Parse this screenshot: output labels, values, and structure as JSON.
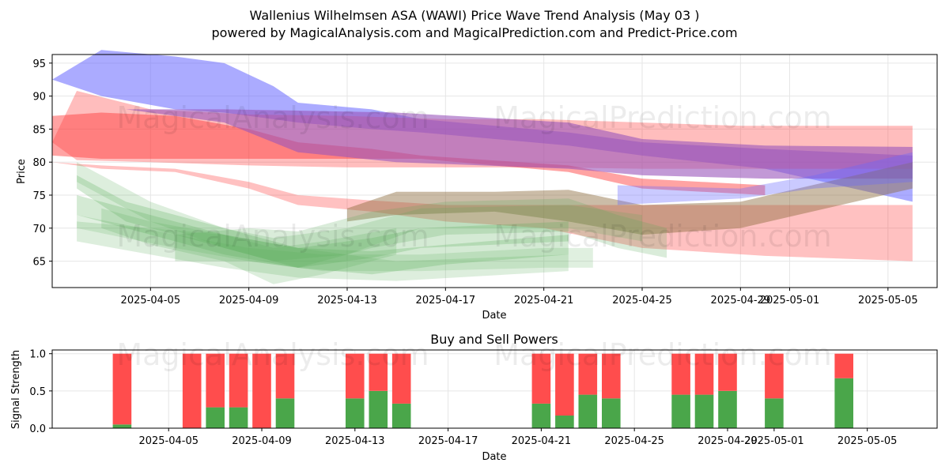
{
  "title_line1": "Wallenius Wilhelmsen ASA (WAWI) Price Wave Trend Analysis (May 03 )",
  "title_line2": "powered by MagicalAnalysis.com and MagicalPrediction.com and Predict-Price.com",
  "watermarks": [
    "MagicalAnalysis.com",
    "MagicalPrediction.com"
  ],
  "chart_data": [
    {
      "type": "area",
      "title": "",
      "xlabel": "Date",
      "ylabel": "Price",
      "x_range": [
        "2025-04-01",
        "2025-05-07"
      ],
      "ylim": [
        61,
        96.3
      ],
      "x_ticks": [
        "2025-04-05",
        "2025-04-09",
        "2025-04-13",
        "2025-04-17",
        "2025-04-21",
        "2025-04-25",
        "2025-04-29",
        "2025-05-01",
        "2025-05-05"
      ],
      "y_ticks": [
        65,
        70,
        75,
        80,
        85,
        90,
        95
      ],
      "grid": true,
      "colors": {
        "blue": "#6666ff",
        "red": "#ff3333",
        "purple": "#9955bb",
        "green": "#55aa55",
        "brown": "#8b6a3c"
      },
      "series": [
        {
          "name": "blue band",
          "color": "blue",
          "opacity": 0.55,
          "x": [
            "2025-04-01",
            "2025-04-03",
            "2025-04-06",
            "2025-04-08",
            "2025-04-10",
            "2025-04-11",
            "2025-04-14",
            "2025-04-16",
            "2025-04-22",
            "2025-04-25",
            "2025-04-30",
            "2025-05-06"
          ],
          "upper": [
            92.5,
            97,
            96,
            95,
            91.5,
            89,
            88,
            86.5,
            84.5,
            83,
            82,
            81
          ],
          "lower": [
            92.5,
            90,
            88,
            87.5,
            86.5,
            86,
            85,
            84.5,
            82.5,
            81,
            79,
            74
          ]
        },
        {
          "name": "red band upper",
          "color": "red",
          "opacity": 0.32,
          "x": [
            "2025-04-01",
            "2025-04-02",
            "2025-04-05",
            "2025-04-09",
            "2025-04-13",
            "2025-04-17",
            "2025-04-21",
            "2025-04-25",
            "2025-04-29",
            "2025-05-06"
          ],
          "upper": [
            83,
            90.8,
            88,
            87.2,
            87,
            86.5,
            86.5,
            86,
            85.5,
            85.5
          ],
          "lower": [
            83,
            80.3,
            80,
            79.5,
            79.2,
            79.2,
            79.2,
            79,
            79,
            79
          ]
        },
        {
          "name": "red band lower",
          "color": "red",
          "opacity": 0.3,
          "x": [
            "2025-04-01",
            "2025-04-03",
            "2025-04-06",
            "2025-04-09",
            "2025-04-11",
            "2025-04-14",
            "2025-04-17",
            "2025-04-21",
            "2025-04-25",
            "2025-04-30",
            "2025-05-06"
          ],
          "upper": [
            80,
            79.5,
            79,
            77,
            75,
            74.2,
            73.5,
            73.5,
            73.5,
            73.5,
            73.5
          ],
          "lower": [
            80,
            79,
            78.5,
            76,
            73.5,
            72.5,
            71,
            70,
            67,
            65.8,
            65
          ]
        },
        {
          "name": "red dark",
          "color": "red",
          "opacity": 0.45,
          "x": [
            "2025-04-01",
            "2025-04-03",
            "2025-04-06",
            "2025-04-09",
            "2025-04-11",
            "2025-04-14",
            "2025-04-16",
            "2025-04-22",
            "2025-04-25",
            "2025-04-30"
          ],
          "upper": [
            87,
            87.5,
            87,
            85,
            83,
            82,
            81,
            79.5,
            77.5,
            76.5
          ],
          "lower": [
            81,
            80.5,
            80.5,
            80.5,
            80.5,
            80.5,
            80.5,
            78.5,
            76,
            75
          ]
        },
        {
          "name": "purple",
          "color": "purple",
          "opacity": 0.6,
          "x": [
            "2025-04-04",
            "2025-04-08",
            "2025-04-11",
            "2025-04-15",
            "2025-04-22",
            "2025-04-25",
            "2025-04-30",
            "2025-05-06"
          ],
          "upper": [
            88,
            88,
            87.8,
            87.5,
            86,
            83.5,
            82.5,
            82.3
          ],
          "lower": [
            88,
            86,
            81.5,
            80,
            79,
            78,
            77.5,
            77.5
          ]
        },
        {
          "name": "brown",
          "color": "brown",
          "opacity": 0.45,
          "x": [
            "2025-04-13",
            "2025-04-15",
            "2025-04-19",
            "2025-04-22",
            "2025-04-25",
            "2025-04-29",
            "2025-05-06"
          ],
          "upper": [
            73,
            75.5,
            75.5,
            75.8,
            73.5,
            74,
            80
          ],
          "lower": [
            71,
            72,
            72.5,
            71,
            69,
            70,
            76
          ]
        },
        {
          "name": "blue slate",
          "color": "blue",
          "opacity": 0.35,
          "x": [
            "2025-04-24",
            "2025-04-29",
            "2025-05-02",
            "2025-05-06"
          ],
          "upper": [
            76.5,
            76,
            78,
            81.5
          ],
          "lower": [
            73.5,
            74.5,
            76,
            77
          ]
        },
        {
          "name": "green 1",
          "color": "green",
          "opacity": 0.25,
          "x": [
            "2025-04-02",
            "2025-04-04",
            "2025-04-07",
            "2025-04-09",
            "2025-04-11",
            "2025-04-14",
            "2025-04-16",
            "2025-04-22"
          ],
          "upper": [
            78,
            74,
            71,
            69,
            67,
            68.5,
            70,
            71
          ],
          "lower": [
            76,
            71,
            68,
            66,
            64,
            65.5,
            67,
            68
          ]
        },
        {
          "name": "green 2",
          "color": "green",
          "opacity": 0.25,
          "x": [
            "2025-04-02",
            "2025-04-05",
            "2025-04-08",
            "2025-04-11",
            "2025-04-14",
            "2025-04-17",
            "2025-04-22"
          ],
          "upper": [
            75,
            72,
            69,
            67,
            66.5,
            67.5,
            69
          ],
          "lower": [
            72,
            69,
            66,
            64,
            63,
            64.5,
            66
          ]
        },
        {
          "name": "green 3",
          "color": "green",
          "opacity": 0.2,
          "x": [
            "2025-04-02",
            "2025-04-05",
            "2025-04-08",
            "2025-04-11",
            "2025-04-15",
            "2025-04-22"
          ],
          "upper": [
            71,
            70,
            69,
            67,
            65,
            66
          ],
          "lower": [
            68,
            66,
            64,
            62.5,
            62,
            63.5
          ]
        },
        {
          "name": "green 4",
          "color": "green",
          "opacity": 0.2,
          "x": [
            "2025-04-02",
            "2025-04-05",
            "2025-04-08",
            "2025-04-10",
            "2025-04-13",
            "2025-04-16",
            "2025-04-22",
            "2025-04-25"
          ],
          "upper": [
            80,
            74,
            70,
            68.5,
            70,
            73,
            73.5,
            72
          ],
          "lower": [
            77,
            71,
            67,
            65,
            66,
            70,
            70,
            68
          ]
        },
        {
          "name": "green 5",
          "color": "green",
          "opacity": 0.22,
          "x": [
            "2025-04-06",
            "2025-04-09",
            "2025-04-11",
            "2025-04-14",
            "2025-04-17",
            "2025-04-22",
            "2025-04-24",
            "2025-04-26"
          ],
          "upper": [
            69,
            70,
            69.5,
            72.5,
            74,
            74.5,
            72,
            70
          ],
          "lower": [
            65,
            65,
            64,
            67,
            69,
            69.5,
            67,
            65.5
          ]
        },
        {
          "name": "green 6",
          "color": "green",
          "opacity": 0.18,
          "x": [
            "2025-04-02",
            "2025-04-06",
            "2025-04-09",
            "2025-04-12",
            "2025-04-16",
            "2025-04-21",
            "2025-04-23"
          ],
          "upper": [
            72,
            69,
            67,
            66,
            66,
            67,
            67
          ],
          "lower": [
            70,
            67,
            65,
            63.5,
            63.5,
            64,
            64
          ]
        },
        {
          "name": "green 7",
          "color": "green",
          "opacity": 0.2,
          "x": [
            "2025-04-03",
            "2025-04-05",
            "2025-04-08",
            "2025-04-10",
            "2025-04-12",
            "2025-04-15"
          ],
          "upper": [
            73,
            71,
            69,
            67,
            68,
            70
          ],
          "lower": [
            70,
            67.5,
            65,
            61.5,
            63,
            66
          ]
        }
      ]
    },
    {
      "type": "bar",
      "title": "Buy and Sell Powers",
      "xlabel": "Date",
      "ylabel": "Signal Strength",
      "ylim": [
        0,
        1.05
      ],
      "y_ticks": [
        "0.0",
        "0.5",
        "1.0"
      ],
      "x_range": [
        "2025-03-31",
        "2025-05-08"
      ],
      "x_ticks": [
        "2025-04-05",
        "2025-04-09",
        "2025-04-13",
        "2025-04-17",
        "2025-04-21",
        "2025-04-25",
        "2025-04-29",
        "2025-05-01",
        "2025-05-05"
      ],
      "grid": true,
      "colors": {
        "buy": "#4aa64a",
        "sell": "#ff4d4d"
      },
      "categories": [
        "2025-04-03",
        "2025-04-06",
        "2025-04-07",
        "2025-04-08",
        "2025-04-09",
        "2025-04-10",
        "2025-04-13",
        "2025-04-14",
        "2025-04-15",
        "2025-04-21",
        "2025-04-22",
        "2025-04-23",
        "2025-04-24",
        "2025-04-27",
        "2025-04-28",
        "2025-04-29",
        "2025-05-01",
        "2025-05-04"
      ],
      "series": [
        {
          "name": "Buy",
          "values": [
            0.05,
            0.0,
            0.28,
            0.28,
            0.0,
            0.4,
            0.4,
            0.5,
            0.33,
            0.33,
            0.17,
            0.45,
            0.4,
            0.45,
            0.45,
            0.5,
            0.4,
            0.67
          ]
        },
        {
          "name": "Sell",
          "values": [
            0.95,
            1.0,
            0.72,
            0.72,
            1.0,
            0.6,
            0.6,
            0.5,
            0.67,
            0.67,
            0.83,
            0.55,
            0.6,
            0.55,
            0.55,
            0.5,
            0.6,
            0.33
          ]
        }
      ]
    }
  ]
}
